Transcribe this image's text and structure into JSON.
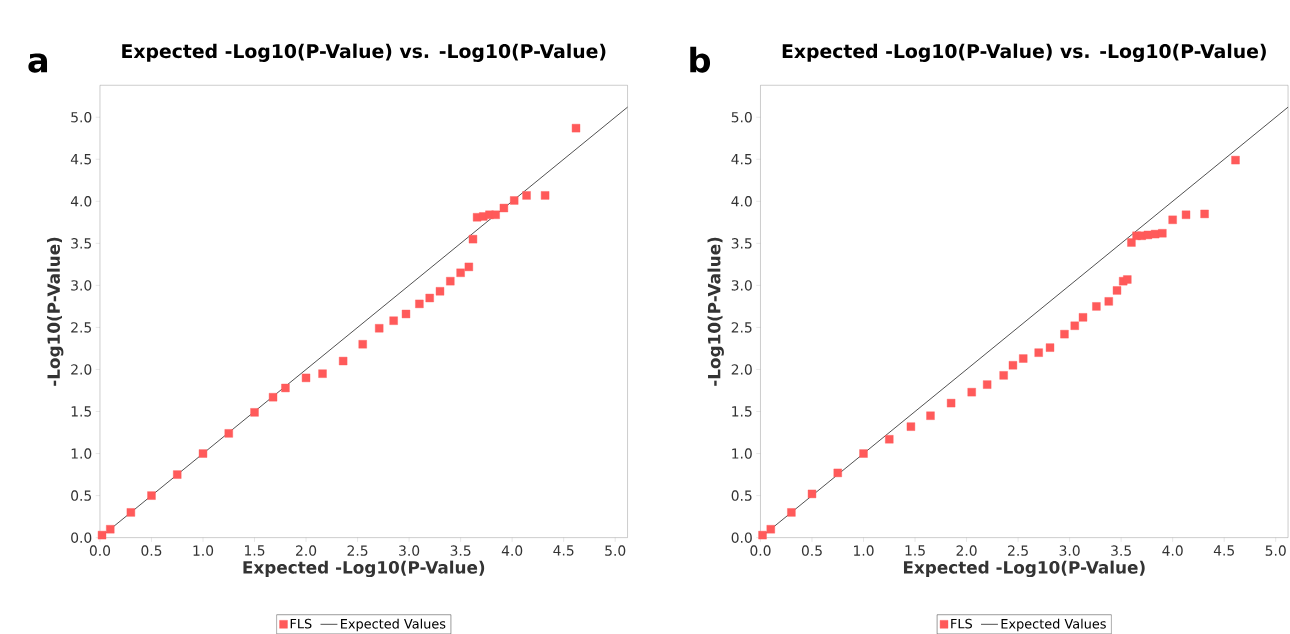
{
  "chart_data": [
    {
      "type": "scatter",
      "title": "Expected -Log10(P-Value) vs. -Log10(P-Value)",
      "xlabel": "Expected -Log10(P-Value)",
      "ylabel": "-Log10(P-Value)",
      "annotations": [
        "a"
      ],
      "xlim": [
        0,
        5.12
      ],
      "ylim": [
        0,
        5.38
      ],
      "xticks": [
        {
          "value": 0,
          "label": "0.0"
        },
        {
          "value": 0.5,
          "label": "0.5"
        },
        {
          "value": 1,
          "label": "1.0"
        },
        {
          "value": 1.5,
          "label": "1.5"
        },
        {
          "value": 2,
          "label": "2.0"
        },
        {
          "value": 2.5,
          "label": "2.5"
        },
        {
          "value": 3,
          "label": "3.0"
        },
        {
          "value": 3.5,
          "label": "3.5"
        },
        {
          "value": 4,
          "label": "4.0"
        },
        {
          "value": 4.5,
          "label": "4.5"
        },
        {
          "value": 5,
          "label": "5.0"
        }
      ],
      "yticks": [
        {
          "value": 0,
          "label": "0.0"
        },
        {
          "value": 0.5,
          "label": "0.5"
        },
        {
          "value": 1,
          "label": "1.0"
        },
        {
          "value": 1.5,
          "label": "1.5"
        },
        {
          "value": 2,
          "label": "2.0"
        },
        {
          "value": 2.5,
          "label": "2.5"
        },
        {
          "value": 3,
          "label": "3.0"
        },
        {
          "value": 3.5,
          "label": "3.5"
        },
        {
          "value": 4,
          "label": "4.0"
        },
        {
          "value": 4.5,
          "label": "4.5"
        },
        {
          "value": 5,
          "label": "5.0"
        }
      ],
      "legend": "bottom",
      "grid": false,
      "series": [
        {
          "name": "FLS",
          "marker": "square",
          "color": "#ff5a5a",
          "x": [
            0.02,
            0.1,
            0.3,
            0.5,
            0.75,
            1.0,
            1.25,
            1.5,
            1.68,
            1.8,
            2.0,
            2.16,
            2.36,
            2.55,
            2.71,
            2.85,
            2.97,
            3.1,
            3.2,
            3.3,
            3.4,
            3.5,
            3.58,
            3.62,
            3.66,
            3.72,
            3.78,
            3.84,
            3.92,
            4.02,
            4.14,
            4.32,
            4.62
          ],
          "values": [
            0.03,
            0.1,
            0.3,
            0.5,
            0.75,
            1.0,
            1.24,
            1.49,
            1.67,
            1.78,
            1.9,
            1.95,
            2.1,
            2.3,
            2.49,
            2.58,
            2.66,
            2.78,
            2.85,
            2.93,
            3.05,
            3.15,
            3.22,
            3.55,
            3.81,
            3.82,
            3.84,
            3.84,
            3.92,
            4.01,
            4.07,
            4.07,
            4.87
          ]
        },
        {
          "name": "Expected Values",
          "type": "line",
          "marker": "none",
          "line_style": "solid",
          "color": "#222222",
          "x": [
            0,
            5.12
          ],
          "values": [
            0,
            5.12
          ]
        }
      ]
    },
    {
      "type": "scatter",
      "title": "Expected -Log10(P-Value) vs. -Log10(P-Value)",
      "xlabel": "Expected -Log10(P-Value)",
      "ylabel": "-Log10(P-Value)",
      "annotations": [
        "b"
      ],
      "xlim": [
        0,
        5.12
      ],
      "ylim": [
        0,
        5.38
      ],
      "xticks": [
        {
          "value": 0,
          "label": "0.0"
        },
        {
          "value": 0.5,
          "label": "0.5"
        },
        {
          "value": 1,
          "label": "1.0"
        },
        {
          "value": 1.5,
          "label": "1.5"
        },
        {
          "value": 2,
          "label": "2.0"
        },
        {
          "value": 2.5,
          "label": "2.5"
        },
        {
          "value": 3,
          "label": "3.0"
        },
        {
          "value": 3.5,
          "label": "3.5"
        },
        {
          "value": 4,
          "label": "4.0"
        },
        {
          "value": 4.5,
          "label": "4.5"
        },
        {
          "value": 5,
          "label": "5.0"
        }
      ],
      "yticks": [
        {
          "value": 0,
          "label": "0.0"
        },
        {
          "value": 0.5,
          "label": "0.5"
        },
        {
          "value": 1,
          "label": "1.0"
        },
        {
          "value": 1.5,
          "label": "1.5"
        },
        {
          "value": 2,
          "label": "2.0"
        },
        {
          "value": 2.5,
          "label": "2.5"
        },
        {
          "value": 3,
          "label": "3.0"
        },
        {
          "value": 3.5,
          "label": "3.5"
        },
        {
          "value": 4,
          "label": "4.0"
        },
        {
          "value": 4.5,
          "label": "4.5"
        },
        {
          "value": 5,
          "label": "5.0"
        }
      ],
      "legend": "bottom",
      "grid": false,
      "series": [
        {
          "name": "FLS",
          "marker": "square",
          "color": "#ff5a5a",
          "x": [
            0.02,
            0.1,
            0.3,
            0.5,
            0.75,
            1.0,
            1.25,
            1.46,
            1.65,
            1.85,
            2.05,
            2.2,
            2.36,
            2.45,
            2.55,
            2.7,
            2.81,
            2.95,
            3.05,
            3.13,
            3.26,
            3.38,
            3.46,
            3.52,
            3.56,
            3.6,
            3.65,
            3.7,
            3.76,
            3.83,
            3.9,
            4.0,
            4.13,
            4.31,
            4.61
          ],
          "values": [
            0.03,
            0.1,
            0.3,
            0.52,
            0.77,
            1.0,
            1.17,
            1.32,
            1.45,
            1.6,
            1.73,
            1.82,
            1.93,
            2.05,
            2.13,
            2.2,
            2.26,
            2.42,
            2.52,
            2.62,
            2.75,
            2.81,
            2.94,
            3.05,
            3.07,
            3.51,
            3.59,
            3.59,
            3.6,
            3.61,
            3.62,
            3.78,
            3.84,
            3.85,
            4.49
          ]
        },
        {
          "name": "Expected Values",
          "type": "line",
          "marker": "none",
          "line_style": "solid",
          "color": "#222222",
          "x": [
            0,
            5.12
          ],
          "values": [
            0,
            5.12
          ]
        }
      ]
    }
  ]
}
